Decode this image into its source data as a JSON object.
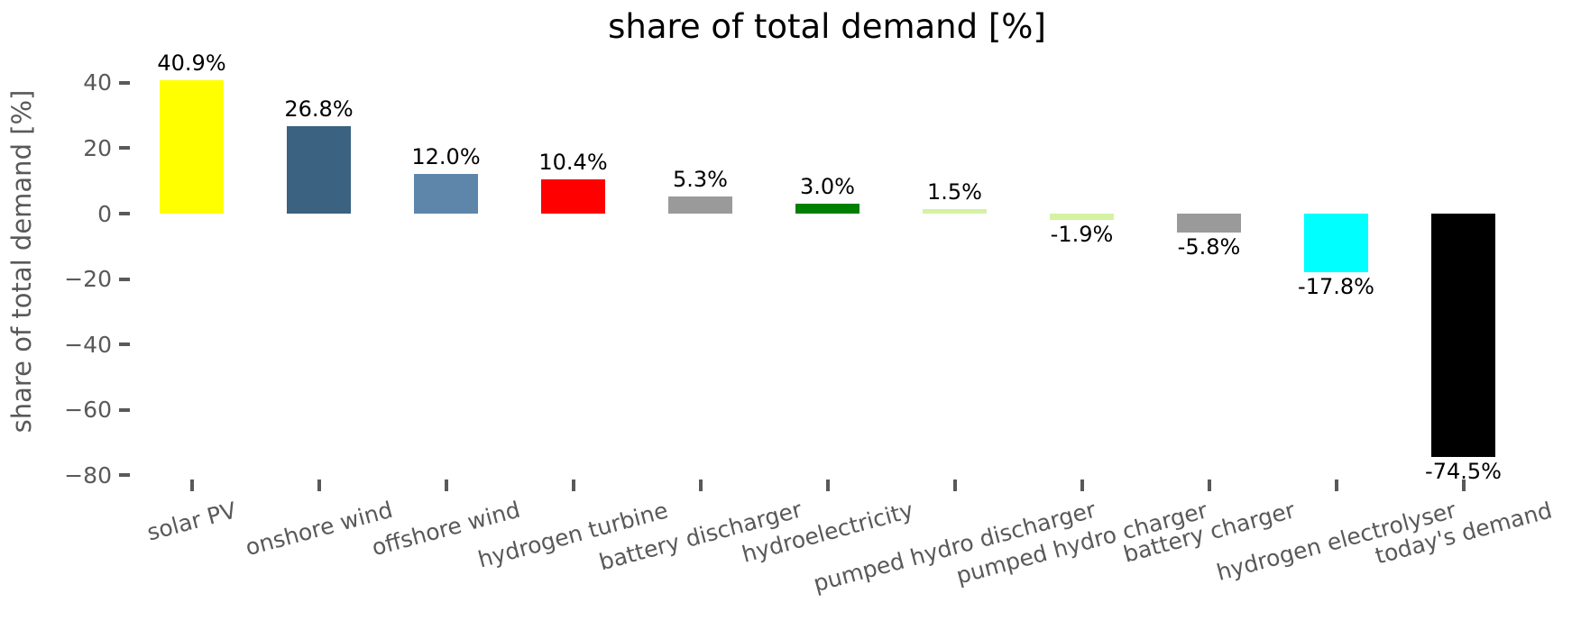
{
  "chart_data": {
    "type": "bar",
    "title": "share of total demand [%]",
    "ylabel": "share of total demand [%]",
    "xlabel": "",
    "categories": [
      "solar PV",
      "onshore wind",
      "offshore wind",
      "hydrogen turbine",
      "battery discharger",
      "hydroelectricity",
      "pumped hydro discharger",
      "pumped hydro charger",
      "battery charger",
      "hydrogen electrolyser",
      "today's demand"
    ],
    "values": [
      40.9,
      26.8,
      12.0,
      10.4,
      5.3,
      3.0,
      1.5,
      -1.9,
      -5.8,
      -17.8,
      -74.5
    ],
    "bar_labels": [
      "40.9%",
      "26.8%",
      "12.0%",
      "10.4%",
      "5.3%",
      "3.0%",
      "1.5%",
      "-1.9%",
      "-5.8%",
      "-17.8%",
      "-74.5%"
    ],
    "bar_colors": [
      "#ffff00",
      "#3b6280",
      "#5e86aa",
      "#ff0000",
      "#9a9a9a",
      "#008000",
      "#d5f2a3",
      "#d5f2a3",
      "#9a9a9a",
      "#00ffff",
      "#000000"
    ],
    "yticks": [
      40,
      20,
      0,
      -20,
      -40,
      -60,
      -80
    ],
    "ytick_labels": [
      "40",
      "20",
      "0",
      "−20",
      "−40",
      "−60",
      "−80"
    ],
    "ylim": [
      -80.5,
      45
    ],
    "grid": false,
    "legend": null,
    "x_tick_label_rotation_deg": 15,
    "colors": {
      "background": "#ffffff",
      "axis_text": "#595959",
      "title_text": "#000000",
      "bar_label_text": "#000000"
    }
  }
}
